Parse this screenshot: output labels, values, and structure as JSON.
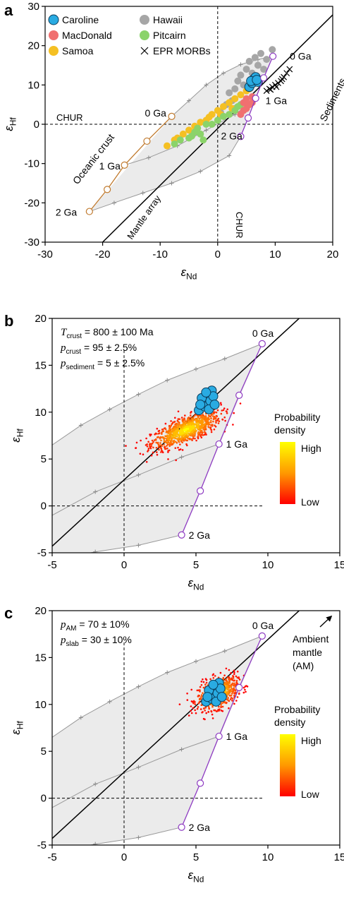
{
  "chart_data": [
    {
      "type": "scatter",
      "panel": "a",
      "xlabel": "εNd",
      "ylabel": "εHf",
      "xlim": [
        -30,
        20
      ],
      "ylim": [
        -30,
        30
      ],
      "xticks": [
        -30,
        -20,
        -10,
        0,
        10,
        20
      ],
      "yticks": [
        -30,
        -20,
        -10,
        0,
        10,
        20,
        30
      ],
      "legend_placement": "top-left",
      "legend": [
        {
          "name": "Caroline",
          "color": "#29ABE2",
          "marker": "circle"
        },
        {
          "name": "Hawaii",
          "color": "#A6A6A6",
          "marker": "circle"
        },
        {
          "name": "MacDonald",
          "color": "#F07070",
          "marker": "circle"
        },
        {
          "name": "Pitcairn",
          "color": "#8BD36A",
          "marker": "circle"
        },
        {
          "name": "Samoa",
          "color": "#F5C023",
          "marker": "circle"
        },
        {
          "name": "EPR MORBs",
          "color": "#000000",
          "marker": "x"
        }
      ],
      "reference_labels": {
        "chur_h": "CHUR",
        "chur_v": "CHUR",
        "mantle_array": "Mantle array",
        "oceanic_crust": "Oceanic crust",
        "sediments": "Sediments"
      },
      "mantle_array_line": [
        [
          -20,
          -30
        ],
        [
          21.5,
          30
        ]
      ],
      "oceanic_crust_path": {
        "points": [
          [
            -8,
            2
          ],
          [
            -12.3,
            -4.3
          ],
          [
            -16.2,
            -10.4
          ],
          [
            -19.2,
            -16.6
          ],
          [
            -22.3,
            -22.2
          ]
        ],
        "age_labels": [
          {
            "text": "0 Ga",
            "x": -8,
            "y": 2
          },
          {
            "text": "1 Ga",
            "x": -16.2,
            "y": -10.4
          },
          {
            "text": "2 Ga",
            "x": -22.3,
            "y": -22.2
          }
        ]
      },
      "sediment_path": {
        "points": [
          [
            9.6,
            17.3
          ],
          [
            8,
            11.8
          ],
          [
            6.6,
            6.6
          ],
          [
            5.3,
            1.6
          ],
          [
            4,
            -3.1
          ]
        ],
        "age_labels": [
          {
            "text": "0 Ga",
            "x": 9.6,
            "y": 17.3
          },
          {
            "text": "1 Ga",
            "x": 6.6,
            "y": 6.6
          },
          {
            "text": "2 Ga",
            "x": 4,
            "y": -3.1
          }
        ]
      },
      "mixing_curves": [
        [
          [
            -22.3,
            -22.2
          ],
          [
            -18,
            -20
          ],
          [
            -13,
            -17.5
          ],
          [
            -8,
            -15
          ],
          [
            -3,
            -12
          ],
          [
            2,
            -8
          ],
          [
            4,
            -3.1
          ]
        ],
        [
          [
            -16.2,
            -10.4
          ],
          [
            -12,
            -8.5
          ],
          [
            -7,
            -5.5
          ],
          [
            -2,
            -1.5
          ],
          [
            3,
            2.5
          ],
          [
            6.6,
            6.6
          ]
        ],
        [
          [
            -8,
            2
          ],
          [
            -5,
            6
          ],
          [
            -2,
            10
          ],
          [
            1,
            13
          ],
          [
            4,
            15.2
          ],
          [
            7,
            16.5
          ],
          [
            9.6,
            17.3
          ]
        ]
      ],
      "series": [
        {
          "name": "Hawaii",
          "points": [
            [
              0.5,
              3
            ],
            [
              1.5,
              5
            ],
            [
              2,
              8
            ],
            [
              3,
              9
            ],
            [
              3.5,
              11
            ],
            [
              4,
              12.5
            ],
            [
              5,
              14
            ],
            [
              5.5,
              16
            ],
            [
              6.5,
              17
            ],
            [
              7,
              15
            ],
            [
              7.5,
              18
            ],
            [
              8.5,
              16.5
            ],
            [
              9.5,
              19
            ],
            [
              6,
              13
            ],
            [
              4.5,
              10
            ],
            [
              2.5,
              6
            ],
            [
              1,
              2
            ],
            [
              8,
              14
            ],
            [
              6.5,
              11.5
            ],
            [
              3,
              4
            ]
          ]
        },
        {
          "name": "Samoa",
          "points": [
            [
              -8.8,
              -5.5
            ],
            [
              -7,
              -3.5
            ],
            [
              -6,
              -2.5
            ],
            [
              -5,
              -1.5
            ],
            [
              -4,
              -0.5
            ],
            [
              -3,
              0.5
            ],
            [
              -2,
              1
            ],
            [
              -1,
              2.5
            ],
            [
              0,
              3.5
            ],
            [
              1,
              4.5
            ],
            [
              2,
              5.5
            ],
            [
              3,
              6.5
            ],
            [
              4,
              7.5
            ],
            [
              5,
              8.5
            ],
            [
              5.5,
              9
            ],
            [
              -7.5,
              -4
            ],
            [
              -1.5,
              1.8
            ],
            [
              0.5,
              2.5
            ],
            [
              2.5,
              4
            ]
          ]
        },
        {
          "name": "Pitcairn",
          "points": [
            [
              -7.5,
              -5
            ],
            [
              -6.5,
              -4
            ],
            [
              -5,
              -3.5
            ],
            [
              -4,
              -2
            ],
            [
              -3,
              -2.5
            ],
            [
              -2.5,
              -4
            ],
            [
              -3.5,
              -1
            ],
            [
              -2,
              0
            ],
            [
              -1,
              0
            ],
            [
              0,
              1
            ],
            [
              1,
              2
            ],
            [
              2,
              2.5
            ],
            [
              3,
              3.5
            ],
            [
              3.5,
              4.5
            ],
            [
              4,
              5
            ],
            [
              -4.5,
              -3
            ]
          ]
        },
        {
          "name": "MacDonald",
          "points": [
            [
              4,
              2.5
            ],
            [
              4.5,
              3.5
            ],
            [
              5,
              4
            ],
            [
              5.5,
              5
            ],
            [
              6,
              5.5
            ],
            [
              5,
              6.5
            ],
            [
              6,
              7
            ],
            [
              4.5,
              5.5
            ]
          ]
        },
        {
          "name": "Caroline",
          "points": [
            [
              5.5,
              9.5
            ],
            [
              6,
              10.5
            ],
            [
              6.3,
              11.5
            ],
            [
              6.6,
              12
            ],
            [
              7,
              10.8
            ],
            [
              5.8,
              11
            ],
            [
              6.8,
              11.3
            ]
          ]
        },
        {
          "name": "EPR MORBs",
          "points": [
            [
              8.5,
              8.5
            ],
            [
              9,
              9
            ],
            [
              9.5,
              9.5
            ],
            [
              10,
              10
            ],
            [
              10.5,
              10.5
            ],
            [
              11,
              11
            ],
            [
              11.5,
              12
            ],
            [
              12,
              13
            ],
            [
              12.5,
              14
            ],
            [
              9.2,
              8.8
            ],
            [
              10.2,
              9.5
            ],
            [
              11.2,
              11.5
            ]
          ]
        }
      ]
    },
    {
      "type": "scatter",
      "panel": "b",
      "xlabel": "εNd",
      "ylabel": "εHf",
      "xlim": [
        -5,
        15
      ],
      "ylim": [
        -5,
        20
      ],
      "xticks": [
        -5,
        0,
        5,
        10,
        15
      ],
      "yticks": [
        -5,
        0,
        5,
        10,
        15,
        20
      ],
      "annotations": [
        {
          "var": "T",
          "sub": "crust",
          "rest": " = 800 ± 100 Ma"
        },
        {
          "var": "p",
          "sub": "crust",
          "rest": " = 95 ± 2.5%"
        },
        {
          "var": "p",
          "sub": "sediment",
          "rest": " = 5 ± 2.5%"
        }
      ],
      "colorbar": {
        "title_lines": [
          "Probability",
          "density"
        ],
        "high_label": "High",
        "low_label": "Low",
        "colors": [
          "#FFFF00",
          "#FF9900",
          "#FF0000"
        ]
      },
      "sediment_path": {
        "points": [
          [
            9.6,
            17.3
          ],
          [
            8,
            11.8
          ],
          [
            6.6,
            6.6
          ],
          [
            5.3,
            1.6
          ],
          [
            4,
            -3.1
          ]
        ],
        "age_labels": [
          {
            "text": "0 Ga",
            "x": 9.6,
            "y": 17.3
          },
          {
            "text": "1 Ga",
            "x": 6.6,
            "y": 6.6
          },
          {
            "text": "2 Ga",
            "x": 4,
            "y": -3.1
          }
        ]
      },
      "mantle_array_line": [
        [
          -5,
          -4.3
        ],
        [
          15,
          24
        ]
      ],
      "mixing_curves": [
        [
          [
            -5,
            -5.8
          ],
          [
            -2,
            -4.9
          ],
          [
            1,
            -4.2
          ],
          [
            4,
            -3.1
          ]
        ],
        [
          [
            -5,
            -1
          ],
          [
            -2,
            1.5
          ],
          [
            1,
            3.3
          ],
          [
            4,
            5.2
          ],
          [
            6.6,
            6.6
          ]
        ],
        [
          [
            -5,
            6.5
          ],
          [
            -3,
            8.6
          ],
          [
            -1,
            10.3
          ],
          [
            1,
            11.9
          ],
          [
            3,
            13.4
          ],
          [
            5,
            14.6
          ],
          [
            7,
            15.7
          ],
          [
            9.6,
            17.3
          ]
        ]
      ],
      "density_cloud": {
        "center": [
          4.3,
          8.1
        ],
        "spread": [
          1.2,
          0.7
        ],
        "tilt": 0.6,
        "count": 900
      },
      "caroline_points": [
        [
          5.2,
          10.2
        ],
        [
          5.5,
          11
        ],
        [
          5.8,
          11.8
        ],
        [
          6.1,
          12.3
        ],
        [
          5.6,
          10.6
        ],
        [
          6,
          11.2
        ],
        [
          5.9,
          10.3
        ],
        [
          5.4,
          11.5
        ],
        [
          6.2,
          11.7
        ],
        [
          5.7,
          12.1
        ],
        [
          6.3,
          10.8
        ],
        [
          5.3,
          10.8
        ]
      ],
      "caroline_color": "#29ABE2"
    },
    {
      "type": "scatter",
      "panel": "c",
      "xlabel": "εNd",
      "ylabel": "εHf",
      "xlim": [
        -5,
        15
      ],
      "ylim": [
        -5,
        20
      ],
      "xticks": [
        -5,
        0,
        5,
        10,
        15
      ],
      "yticks": [
        -5,
        0,
        5,
        10,
        15,
        20
      ],
      "annotations": [
        {
          "var": "p",
          "sub": "AM",
          "rest": " = 70 ± 10%"
        },
        {
          "var": "p",
          "sub": "slab",
          "rest": " = 30 ± 10%"
        }
      ],
      "am_label_lines": [
        "Ambient",
        "mantle",
        "(AM)"
      ],
      "colorbar": {
        "title_lines": [
          "Probability",
          "density"
        ],
        "high_label": "High",
        "low_label": "Low",
        "colors": [
          "#FFFF00",
          "#FF9900",
          "#FF0000"
        ]
      },
      "sediment_path": {
        "points": [
          [
            9.6,
            17.3
          ],
          [
            8,
            11.8
          ],
          [
            6.6,
            6.6
          ],
          [
            5.3,
            1.6
          ],
          [
            4,
            -3.1
          ]
        ],
        "age_labels": [
          {
            "text": "0 Ga",
            "x": 9.6,
            "y": 17.3
          },
          {
            "text": "1 Ga",
            "x": 6.6,
            "y": 6.6
          },
          {
            "text": "2 Ga",
            "x": 4,
            "y": -3.1
          }
        ]
      },
      "mantle_array_line": [
        [
          -5,
          -4.3
        ],
        [
          15,
          24
        ]
      ],
      "mixing_curves": [
        [
          [
            -5,
            -5.8
          ],
          [
            -2,
            -4.9
          ],
          [
            1,
            -4.2
          ],
          [
            4,
            -3.1
          ]
        ],
        [
          [
            -5,
            -1
          ],
          [
            -2,
            1.5
          ],
          [
            1,
            3.3
          ],
          [
            4,
            5.2
          ],
          [
            6.6,
            6.6
          ]
        ],
        [
          [
            -5,
            6.5
          ],
          [
            -3,
            8.6
          ],
          [
            -1,
            10.3
          ],
          [
            1,
            11.9
          ],
          [
            3,
            13.4
          ],
          [
            5,
            14.6
          ],
          [
            7,
            15.7
          ],
          [
            9.6,
            17.3
          ]
        ]
      ],
      "density_cloud": {
        "center": [
          6.5,
          11.2
        ],
        "spread": [
          0.7,
          0.8
        ],
        "tilt": 0.5,
        "count": 700
      },
      "caroline_points": [
        [
          5.7,
          10.3
        ],
        [
          6,
          11
        ],
        [
          6.3,
          11.8
        ],
        [
          6.6,
          12.3
        ],
        [
          6.1,
          10.6
        ],
        [
          6.5,
          11.2
        ],
        [
          6.4,
          10.3
        ],
        [
          5.9,
          11.5
        ],
        [
          6.7,
          11.7
        ],
        [
          6.2,
          12.1
        ],
        [
          6.8,
          10.8
        ],
        [
          5.8,
          10.8
        ]
      ],
      "caroline_color": "#29ABE2"
    }
  ]
}
